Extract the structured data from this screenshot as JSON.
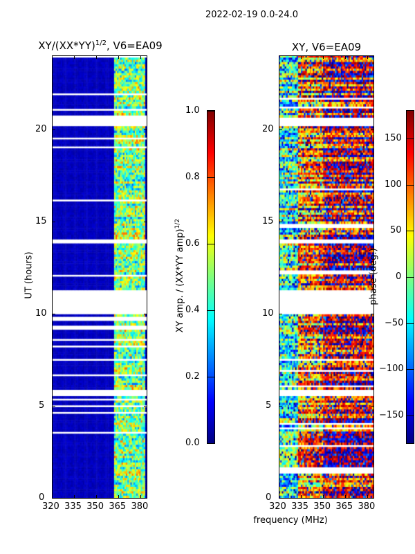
{
  "suptitle": "2022-02-19 0.0-24.0",
  "xlabel": "frequency (MHz)",
  "chart_data": [
    {
      "type": "heatmap",
      "title": "XY/(XX*YY)^1/2, V6=EA09",
      "title_main": "XY/(XX*YY)",
      "title_sup": "1/2",
      "title_tail": ", V6=EA09",
      "xlabel": "frequency (MHz)",
      "ylabel": "UT (hours)",
      "xlim": [
        320,
        384
      ],
      "ylim": [
        0,
        24
      ],
      "xticks": [
        "320",
        "335",
        "350",
        "365",
        "380"
      ],
      "yticks": [
        "0",
        "5",
        "10",
        "15",
        "20"
      ],
      "colormap": "jet",
      "colorbar": {
        "label": "XY amp. / (XX*YY amp)",
        "label_sup": "1/2",
        "range": [
          0,
          1
        ],
        "ticks": [
          "0.0",
          "0.2",
          "0.4",
          "0.6",
          "0.8",
          "1.0"
        ]
      },
      "description_values": {
        "low_band_320_361_MHz": 0.05,
        "high_band_362_382_MHz": 0.45
      },
      "flagged_hours": [
        [
          20.2,
          20.6
        ],
        [
          13.75,
          14.05
        ],
        [
          10.0,
          11.25
        ],
        [
          5.5,
          5.85
        ],
        [
          7.4,
          7.6
        ]
      ]
    },
    {
      "type": "heatmap",
      "title": "XY, V6=EA09",
      "xlabel": "frequency (MHz)",
      "ylabel": "",
      "xlim": [
        320,
        384
      ],
      "ylim": [
        0,
        24
      ],
      "xticks": [
        "320",
        "335",
        "350",
        "365",
        "380"
      ],
      "yticks": [
        "0",
        "5",
        "10",
        "15",
        "20"
      ],
      "colormap": "jet",
      "colorbar": {
        "label": "phase (deg.)",
        "range": [
          -180,
          180
        ],
        "ticks": [
          "−150",
          "−100",
          "−50",
          "0",
          "50",
          "100",
          "150"
        ]
      },
      "description_values": {
        "low_band_phase_deg": -20,
        "high_band_phase_deg": 140
      },
      "flagged_hours": [
        [
          20.2,
          20.6
        ],
        [
          13.75,
          14.05
        ],
        [
          10.0,
          11.25
        ],
        [
          5.5,
          5.85
        ],
        [
          7.4,
          7.6
        ]
      ]
    }
  ]
}
